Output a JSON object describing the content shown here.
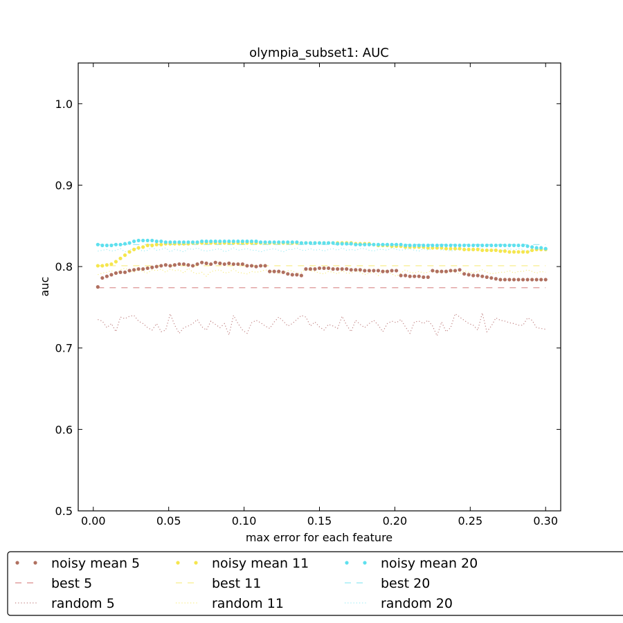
{
  "chart_data": {
    "type": "line",
    "title": "olympia_subset1: AUC",
    "xlabel": "max error for each feature",
    "ylabel": "auc",
    "xlim": [
      -0.01,
      0.31
    ],
    "ylim": [
      0.5,
      1.05
    ],
    "x_ticks": [
      "0.00",
      "0.05",
      "0.10",
      "0.15",
      "0.20",
      "0.25",
      "0.30"
    ],
    "x_tick_values": [
      0.0,
      0.05,
      0.1,
      0.15,
      0.2,
      0.25,
      0.3
    ],
    "y_ticks": [
      "0.5",
      "0.6",
      "0.7",
      "0.8",
      "0.9",
      "1.0"
    ],
    "y_tick_values": [
      0.5,
      0.6,
      0.7,
      0.8,
      0.9,
      1.0
    ],
    "grid": false,
    "legend_placement": "below plot, 4 columns",
    "x": [
      0.003,
      0.006,
      0.009,
      0.012,
      0.015,
      0.018,
      0.021,
      0.024,
      0.027,
      0.03,
      0.033,
      0.036,
      0.039,
      0.042,
      0.045,
      0.048,
      0.051,
      0.054,
      0.057,
      0.06,
      0.063,
      0.066,
      0.069,
      0.072,
      0.075,
      0.078,
      0.081,
      0.084,
      0.087,
      0.09,
      0.093,
      0.096,
      0.099,
      0.102,
      0.105,
      0.108,
      0.111,
      0.114,
      0.117,
      0.12,
      0.123,
      0.126,
      0.129,
      0.132,
      0.135,
      0.138,
      0.141,
      0.144,
      0.147,
      0.15,
      0.153,
      0.156,
      0.159,
      0.162,
      0.165,
      0.168,
      0.171,
      0.174,
      0.177,
      0.18,
      0.183,
      0.186,
      0.189,
      0.192,
      0.195,
      0.198,
      0.201,
      0.204,
      0.207,
      0.21,
      0.213,
      0.216,
      0.219,
      0.222,
      0.225,
      0.228,
      0.231,
      0.234,
      0.237,
      0.24,
      0.243,
      0.246,
      0.249,
      0.252,
      0.255,
      0.258,
      0.261,
      0.264,
      0.267,
      0.27,
      0.273,
      0.276,
      0.279,
      0.282,
      0.285,
      0.288,
      0.291,
      0.294,
      0.297,
      0.3
    ],
    "series": [
      {
        "name": "noisy mean 5",
        "style": "dots",
        "color": "#b07060",
        "values": [
          0.775,
          0.786,
          0.788,
          0.79,
          0.792,
          0.793,
          0.793,
          0.795,
          0.796,
          0.797,
          0.797,
          0.798,
          0.799,
          0.8,
          0.801,
          0.802,
          0.801,
          0.802,
          0.803,
          0.803,
          0.802,
          0.801,
          0.803,
          0.805,
          0.804,
          0.803,
          0.805,
          0.804,
          0.803,
          0.804,
          0.803,
          0.803,
          0.803,
          0.801,
          0.801,
          0.8,
          0.801,
          0.801,
          0.794,
          0.794,
          0.794,
          0.793,
          0.791,
          0.79,
          0.79,
          0.789,
          0.797,
          0.797,
          0.797,
          0.798,
          0.798,
          0.798,
          0.797,
          0.797,
          0.797,
          0.797,
          0.796,
          0.796,
          0.796,
          0.795,
          0.795,
          0.795,
          0.795,
          0.794,
          0.794,
          0.795,
          0.795,
          0.789,
          0.789,
          0.788,
          0.788,
          0.788,
          0.787,
          0.787,
          0.795,
          0.794,
          0.794,
          0.794,
          0.795,
          0.795,
          0.796,
          0.791,
          0.79,
          0.789,
          0.789,
          0.788,
          0.787,
          0.786,
          0.785,
          0.784,
          0.784,
          0.784,
          0.784,
          0.784,
          0.784,
          0.784,
          0.784,
          0.784,
          0.784,
          0.784
        ]
      },
      {
        "name": "best 5",
        "style": "dashed",
        "color": "#d98a8a",
        "values": [
          0.774,
          0.774,
          0.774,
          0.774,
          0.774,
          0.774,
          0.774,
          0.774,
          0.774,
          0.774,
          0.774,
          0.774,
          0.774,
          0.774,
          0.774,
          0.774,
          0.774,
          0.774,
          0.774,
          0.774,
          0.774,
          0.774,
          0.774,
          0.774,
          0.774,
          0.774,
          0.774,
          0.774,
          0.774,
          0.774,
          0.774,
          0.774,
          0.774,
          0.774,
          0.774,
          0.774,
          0.774,
          0.774,
          0.774,
          0.774,
          0.774,
          0.774,
          0.774,
          0.774,
          0.774,
          0.774,
          0.774,
          0.774,
          0.774,
          0.774,
          0.774,
          0.774,
          0.774,
          0.774,
          0.774,
          0.774,
          0.774,
          0.774,
          0.774,
          0.774,
          0.774,
          0.774,
          0.774,
          0.774,
          0.774,
          0.774,
          0.774,
          0.774,
          0.774,
          0.774,
          0.774,
          0.774,
          0.774,
          0.774,
          0.774,
          0.774,
          0.774,
          0.774,
          0.774,
          0.774,
          0.774,
          0.774,
          0.774,
          0.774,
          0.774,
          0.774,
          0.774,
          0.774,
          0.774,
          0.774,
          0.774,
          0.774,
          0.774,
          0.774,
          0.774,
          0.774,
          0.774,
          0.774,
          0.774,
          0.774
        ]
      },
      {
        "name": "random 5",
        "style": "dotted",
        "color": "#c08080",
        "values": [
          0.735,
          0.733,
          0.725,
          0.73,
          0.72,
          0.738,
          0.736,
          0.739,
          0.74,
          0.733,
          0.73,
          0.725,
          0.722,
          0.73,
          0.72,
          0.722,
          0.742,
          0.728,
          0.718,
          0.725,
          0.727,
          0.73,
          0.735,
          0.726,
          0.722,
          0.733,
          0.729,
          0.725,
          0.73,
          0.716,
          0.74,
          0.73,
          0.722,
          0.718,
          0.731,
          0.734,
          0.731,
          0.727,
          0.724,
          0.732,
          0.738,
          0.733,
          0.727,
          0.73,
          0.735,
          0.74,
          0.738,
          0.727,
          0.732,
          0.726,
          0.722,
          0.729,
          0.727,
          0.724,
          0.739,
          0.728,
          0.72,
          0.734,
          0.729,
          0.725,
          0.73,
          0.734,
          0.728,
          0.72,
          0.73,
          0.733,
          0.731,
          0.735,
          0.726,
          0.718,
          0.732,
          0.733,
          0.73,
          0.734,
          0.727,
          0.715,
          0.732,
          0.72,
          0.725,
          0.742,
          0.738,
          0.734,
          0.73,
          0.728,
          0.722,
          0.743,
          0.72,
          0.727,
          0.737,
          0.734,
          0.733,
          0.731,
          0.73,
          0.728,
          0.728,
          0.737,
          0.734,
          0.725,
          0.724,
          0.723
        ]
      },
      {
        "name": "noisy mean 11",
        "style": "dots",
        "color": "#f5e64e",
        "values": [
          0.801,
          0.801,
          0.802,
          0.803,
          0.806,
          0.81,
          0.814,
          0.818,
          0.821,
          0.823,
          0.824,
          0.826,
          0.826,
          0.827,
          0.827,
          0.828,
          0.828,
          0.828,
          0.828,
          0.828,
          0.828,
          0.829,
          0.829,
          0.829,
          0.829,
          0.829,
          0.829,
          0.829,
          0.829,
          0.829,
          0.829,
          0.829,
          0.829,
          0.829,
          0.829,
          0.829,
          0.829,
          0.829,
          0.829,
          0.829,
          0.829,
          0.829,
          0.829,
          0.829,
          0.829,
          0.829,
          0.829,
          0.829,
          0.829,
          0.829,
          0.829,
          0.829,
          0.829,
          0.829,
          0.829,
          0.829,
          0.829,
          0.828,
          0.828,
          0.828,
          0.828,
          0.827,
          0.826,
          0.826,
          0.826,
          0.825,
          0.825,
          0.825,
          0.824,
          0.824,
          0.824,
          0.824,
          0.824,
          0.823,
          0.823,
          0.823,
          0.823,
          0.822,
          0.822,
          0.822,
          0.822,
          0.821,
          0.821,
          0.821,
          0.821,
          0.82,
          0.82,
          0.82,
          0.82,
          0.819,
          0.819,
          0.818,
          0.818,
          0.818,
          0.818,
          0.818,
          0.82,
          0.821,
          0.821,
          0.821
        ]
      },
      {
        "name": "best 11",
        "style": "dashed",
        "color": "#f8ee8c",
        "values": [
          0.801,
          0.801,
          0.801,
          0.801,
          0.801,
          0.801,
          0.801,
          0.801,
          0.801,
          0.801,
          0.801,
          0.801,
          0.801,
          0.801,
          0.801,
          0.801,
          0.801,
          0.801,
          0.801,
          0.801,
          0.801,
          0.801,
          0.801,
          0.801,
          0.801,
          0.801,
          0.801,
          0.801,
          0.801,
          0.801,
          0.801,
          0.801,
          0.801,
          0.801,
          0.801,
          0.801,
          0.801,
          0.801,
          0.801,
          0.801,
          0.801,
          0.801,
          0.801,
          0.801,
          0.801,
          0.801,
          0.801,
          0.801,
          0.801,
          0.801,
          0.801,
          0.801,
          0.801,
          0.801,
          0.801,
          0.801,
          0.801,
          0.801,
          0.801,
          0.801,
          0.801,
          0.801,
          0.801,
          0.801,
          0.801,
          0.801,
          0.801,
          0.801,
          0.801,
          0.801,
          0.801,
          0.801,
          0.801,
          0.801,
          0.801,
          0.801,
          0.801,
          0.801,
          0.801,
          0.801,
          0.801,
          0.801,
          0.801,
          0.801,
          0.801,
          0.801,
          0.801,
          0.801,
          0.801,
          0.801,
          0.801,
          0.801,
          0.801,
          0.801,
          0.801,
          0.801,
          0.801,
          0.801,
          0.801,
          0.801
        ]
      },
      {
        "name": "random 11",
        "style": "dotted",
        "color": "#f7ec80",
        "values": [
          0.79,
          0.792,
          0.793,
          0.795,
          0.791,
          0.796,
          0.798,
          0.795,
          0.793,
          0.797,
          0.794,
          0.792,
          0.796,
          0.795,
          0.797,
          0.793,
          0.797,
          0.795,
          0.796,
          0.792,
          0.798,
          0.793,
          0.791,
          0.793,
          0.788,
          0.794,
          0.795,
          0.796,
          0.792,
          0.793,
          0.797,
          0.793,
          0.792,
          0.791,
          0.794,
          0.793,
          0.794,
          0.796,
          0.795,
          0.793,
          0.791,
          0.792,
          0.795,
          0.795,
          0.791,
          0.793,
          0.797,
          0.795,
          0.794,
          0.792,
          0.791,
          0.794,
          0.793,
          0.791,
          0.795,
          0.792,
          0.792,
          0.795,
          0.793,
          0.79,
          0.792,
          0.793,
          0.789,
          0.795,
          0.794,
          0.791,
          0.788,
          0.792,
          0.796,
          0.793,
          0.792,
          0.794,
          0.792,
          0.793,
          0.796,
          0.792,
          0.794,
          0.792,
          0.795,
          0.794,
          0.791,
          0.795,
          0.793,
          0.792,
          0.794,
          0.796,
          0.793,
          0.791,
          0.792,
          0.793,
          0.793,
          0.795,
          0.792,
          0.794,
          0.794,
          0.796,
          0.794,
          0.792,
          0.794,
          0.793
        ]
      },
      {
        "name": "noisy mean 20",
        "style": "dots",
        "color": "#5ee0ee",
        "values": [
          0.827,
          0.826,
          0.826,
          0.826,
          0.827,
          0.827,
          0.828,
          0.829,
          0.831,
          0.832,
          0.832,
          0.832,
          0.832,
          0.831,
          0.831,
          0.83,
          0.83,
          0.83,
          0.83,
          0.83,
          0.83,
          0.83,
          0.83,
          0.831,
          0.831,
          0.831,
          0.831,
          0.831,
          0.831,
          0.831,
          0.831,
          0.831,
          0.831,
          0.831,
          0.831,
          0.831,
          0.83,
          0.83,
          0.83,
          0.83,
          0.83,
          0.83,
          0.83,
          0.83,
          0.83,
          0.829,
          0.829,
          0.829,
          0.829,
          0.829,
          0.829,
          0.829,
          0.829,
          0.828,
          0.828,
          0.828,
          0.828,
          0.827,
          0.827,
          0.827,
          0.827,
          0.827,
          0.827,
          0.827,
          0.827,
          0.827,
          0.827,
          0.827,
          0.826,
          0.826,
          0.826,
          0.826,
          0.826,
          0.826,
          0.826,
          0.826,
          0.826,
          0.826,
          0.826,
          0.826,
          0.826,
          0.826,
          0.826,
          0.826,
          0.826,
          0.826,
          0.826,
          0.826,
          0.826,
          0.826,
          0.826,
          0.826,
          0.826,
          0.826,
          0.826,
          0.825,
          0.824,
          0.823,
          0.823,
          0.822
        ]
      },
      {
        "name": "best 20",
        "style": "dashed",
        "color": "#8fe8f2",
        "values": [
          0.827,
          0.827,
          0.827,
          0.827,
          0.827,
          0.827,
          0.827,
          0.827,
          0.827,
          0.827,
          0.827,
          0.827,
          0.827,
          0.827,
          0.827,
          0.827,
          0.827,
          0.827,
          0.827,
          0.827,
          0.827,
          0.827,
          0.827,
          0.827,
          0.827,
          0.827,
          0.827,
          0.827,
          0.827,
          0.827,
          0.827,
          0.827,
          0.827,
          0.827,
          0.827,
          0.827,
          0.827,
          0.827,
          0.827,
          0.827,
          0.827,
          0.827,
          0.827,
          0.827,
          0.827,
          0.827,
          0.827,
          0.827,
          0.827,
          0.827,
          0.827,
          0.827,
          0.827,
          0.827,
          0.827,
          0.827,
          0.827,
          0.827,
          0.827,
          0.827,
          0.827,
          0.827,
          0.827,
          0.827,
          0.827,
          0.827,
          0.827,
          0.827,
          0.827,
          0.827,
          0.827,
          0.827,
          0.827,
          0.827,
          0.827,
          0.827,
          0.827,
          0.827,
          0.827,
          0.827,
          0.827,
          0.827,
          0.827,
          0.827,
          0.827,
          0.827,
          0.827,
          0.827,
          0.827,
          0.827,
          0.827,
          0.827,
          0.827,
          0.827,
          0.827,
          0.827,
          0.827,
          0.827,
          0.827,
          0.827
        ]
      },
      {
        "name": "random 20",
        "style": "dotted",
        "color": "#9eecf4",
        "values": [
          0.819,
          0.82,
          0.821,
          0.819,
          0.82,
          0.822,
          0.818,
          0.82,
          0.823,
          0.821,
          0.819,
          0.82,
          0.824,
          0.82,
          0.821,
          0.823,
          0.818,
          0.821,
          0.82,
          0.818,
          0.822,
          0.821,
          0.823,
          0.82,
          0.819,
          0.82,
          0.821,
          0.822,
          0.818,
          0.82,
          0.823,
          0.82,
          0.821,
          0.822,
          0.82,
          0.82,
          0.818,
          0.82,
          0.821,
          0.822,
          0.82,
          0.818,
          0.821,
          0.821,
          0.823,
          0.82,
          0.82,
          0.822,
          0.82,
          0.821,
          0.819,
          0.821,
          0.822,
          0.82,
          0.823,
          0.82,
          0.821,
          0.82,
          0.822,
          0.822,
          0.82,
          0.819,
          0.821,
          0.821,
          0.82,
          0.823,
          0.821,
          0.82,
          0.821,
          0.822,
          0.82,
          0.819,
          0.822,
          0.82,
          0.822,
          0.823,
          0.82,
          0.821,
          0.819,
          0.82,
          0.822,
          0.821,
          0.82,
          0.82,
          0.823,
          0.822,
          0.82,
          0.82,
          0.821,
          0.819,
          0.821,
          0.822,
          0.82,
          0.822,
          0.821,
          0.818,
          0.82,
          0.821,
          0.822,
          0.821
        ]
      }
    ]
  }
}
